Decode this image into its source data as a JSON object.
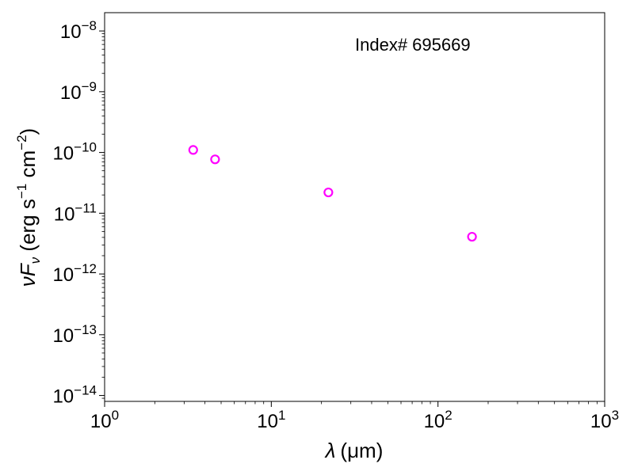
{
  "chart_data": {
    "type": "scatter",
    "annotation": "Index# 695669",
    "xlabel": {
      "main": "λ",
      "unit": "(μm)"
    },
    "ylabel": {
      "prefix": "ν",
      "main": "F",
      "sub": "ν",
      "unit_open": " (erg s",
      "exp1": "−1",
      "unit_mid": " cm",
      "exp2": "−2",
      "unit_close": ")"
    },
    "x_scale": "log",
    "y_scale": "log",
    "xlim": [
      1,
      1000
    ],
    "ylim": [
      8e-15,
      2e-08
    ],
    "grid": false,
    "marker": {
      "shape": "open-circle",
      "color": "#ff00ff"
    },
    "x_ticks": [
      {
        "value": 1,
        "base": "10",
        "exp": "0"
      },
      {
        "value": 10,
        "base": "10",
        "exp": "1"
      },
      {
        "value": 100,
        "base": "10",
        "exp": "2"
      },
      {
        "value": 1000,
        "base": "10",
        "exp": "3"
      }
    ],
    "y_ticks": [
      {
        "value": 1e-14,
        "base": "10",
        "exp": "−14"
      },
      {
        "value": 1e-13,
        "base": "10",
        "exp": "−13"
      },
      {
        "value": 1e-12,
        "base": "10",
        "exp": "−12"
      },
      {
        "value": 1e-11,
        "base": "10",
        "exp": "−11"
      },
      {
        "value": 1e-10,
        "base": "10",
        "exp": "−10"
      },
      {
        "value": 1e-09,
        "base": "10",
        "exp": "−9"
      },
      {
        "value": 1e-08,
        "base": "10",
        "exp": "−8"
      }
    ],
    "points": [
      {
        "x": 3.4,
        "y": 1.1e-10
      },
      {
        "x": 4.6,
        "y": 7.7e-11
      },
      {
        "x": 22,
        "y": 2.2e-11
      },
      {
        "x": 160,
        "y": 4.1e-12
      }
    ]
  }
}
